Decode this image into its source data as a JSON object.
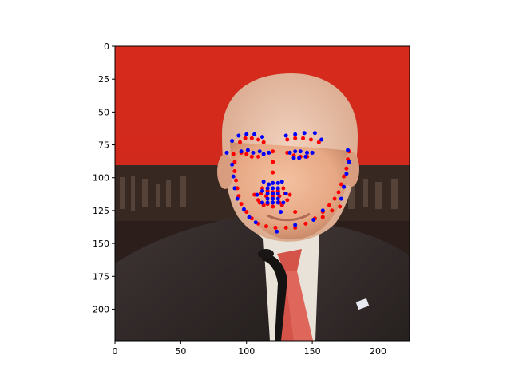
{
  "chart_data": {
    "type": "scatter",
    "title": "",
    "xlabel": "",
    "ylabel": "",
    "xlim": [
      0,
      224
    ],
    "ylim": [
      224,
      0
    ],
    "y_inverted": true,
    "grid": false,
    "legend": "none",
    "background_image": "photo-of-man-in-suit-speaking-at-microphone-red-backdrop",
    "x_ticks": [
      0,
      50,
      100,
      150,
      200
    ],
    "y_ticks": [
      0,
      25,
      50,
      75,
      100,
      125,
      150,
      175,
      200
    ],
    "series": [
      {
        "color": "#ff0000",
        "points": [
          [
            90,
            82
          ],
          [
            91,
            88
          ],
          [
            91,
            95
          ],
          [
            92,
            102
          ],
          [
            93,
            108
          ],
          [
            94,
            114
          ],
          [
            96,
            120
          ],
          [
            100,
            126
          ],
          [
            104,
            131
          ],
          [
            109,
            135
          ],
          [
            115,
            137
          ],
          [
            122,
            138
          ],
          [
            130,
            138
          ],
          [
            137,
            138
          ],
          [
            145,
            135
          ],
          [
            152,
            131
          ],
          [
            158,
            126
          ],
          [
            163,
            121
          ],
          [
            167,
            116
          ],
          [
            170,
            111
          ],
          [
            172,
            105
          ],
          [
            174,
            99
          ],
          [
            176,
            93
          ],
          [
            177,
            86
          ],
          [
            178,
            80
          ],
          [
            95,
            73
          ],
          [
            99,
            70
          ],
          [
            104,
            70
          ],
          [
            109,
            71
          ],
          [
            113,
            73
          ],
          [
            131,
            71
          ],
          [
            137,
            70
          ],
          [
            143,
            70
          ],
          [
            149,
            71
          ],
          [
            155,
            73
          ],
          [
            96,
            81
          ],
          [
            100,
            82
          ],
          [
            104,
            84
          ],
          [
            109,
            84
          ],
          [
            113,
            82
          ],
          [
            131,
            81
          ],
          [
            136,
            83
          ],
          [
            141,
            84
          ],
          [
            146,
            84
          ],
          [
            150,
            81
          ],
          [
            120,
            80
          ],
          [
            120,
            88
          ],
          [
            120,
            96
          ],
          [
            120,
            104
          ],
          [
            112,
            108
          ],
          [
            116,
            110
          ],
          [
            120,
            111
          ],
          [
            124,
            110
          ],
          [
            128,
            108
          ],
          [
            106,
            113
          ],
          [
            109,
            117
          ],
          [
            113,
            121
          ],
          [
            120,
            122
          ],
          [
            127,
            121
          ],
          [
            131,
            117
          ],
          [
            133,
            113
          ],
          [
            111,
            112
          ],
          [
            115,
            114
          ],
          [
            120,
            114
          ],
          [
            125,
            114
          ],
          [
            129,
            112
          ],
          [
            110,
            119
          ],
          [
            116,
            120
          ],
          [
            125,
            119
          ],
          [
            137,
            126
          ],
          [
            158,
            130
          ],
          [
            165,
            125
          ],
          [
            171,
            122
          ]
        ]
      },
      {
        "color": "#0000ff",
        "points": [
          [
            85,
            81
          ],
          [
            89,
            72
          ],
          [
            94,
            68
          ],
          [
            100,
            67
          ],
          [
            106,
            67
          ],
          [
            112,
            69
          ],
          [
            130,
            68
          ],
          [
            137,
            67
          ],
          [
            144,
            66
          ],
          [
            152,
            66
          ],
          [
            157,
            71
          ],
          [
            96,
            80
          ],
          [
            101,
            79
          ],
          [
            105,
            81
          ],
          [
            110,
            80
          ],
          [
            113,
            82
          ],
          [
            133,
            81
          ],
          [
            137,
            80
          ],
          [
            141,
            80
          ],
          [
            146,
            81
          ],
          [
            150,
            81
          ],
          [
            136,
            85
          ],
          [
            140,
            85
          ],
          [
            145,
            84
          ],
          [
            117,
            81
          ],
          [
            117,
            105
          ],
          [
            120,
            104
          ],
          [
            124,
            104
          ],
          [
            127,
            103
          ],
          [
            116,
            108
          ],
          [
            120,
            108
          ],
          [
            124,
            108
          ],
          [
            116,
            112
          ],
          [
            120,
            112
          ],
          [
            124,
            112
          ],
          [
            116,
            116
          ],
          [
            120,
            116
          ],
          [
            124,
            116
          ],
          [
            116,
            119
          ],
          [
            120,
            119
          ],
          [
            124,
            119
          ],
          [
            108,
            113
          ],
          [
            112,
            110
          ],
          [
            130,
            112
          ],
          [
            113,
            103
          ],
          [
            112,
            119
          ],
          [
            128,
            119
          ],
          [
            177,
            79
          ],
          [
            178,
            88
          ],
          [
            176,
            97
          ],
          [
            174,
            107
          ],
          [
            172,
            116
          ],
          [
            158,
            125
          ],
          [
            151,
            132
          ],
          [
            137,
            136
          ],
          [
            123,
            141
          ],
          [
            107,
            134
          ],
          [
            102,
            130
          ],
          [
            98,
            124
          ],
          [
            93,
            116
          ],
          [
            91,
            108
          ],
          [
            90,
            99
          ],
          [
            89,
            90
          ],
          [
            126,
            126
          ]
        ]
      }
    ]
  }
}
